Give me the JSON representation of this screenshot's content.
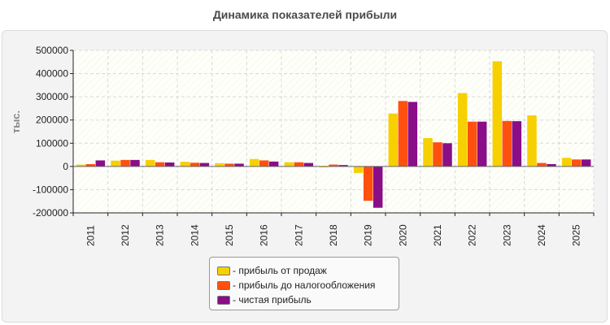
{
  "chart_data": {
    "type": "bar",
    "title": "Динамика показателей прибыли",
    "ylabel": "тыс.",
    "categories": [
      "2011",
      "2012",
      "2013",
      "2014",
      "2015",
      "2016",
      "2017",
      "2018",
      "2019",
      "2020",
      "2021",
      "2022",
      "2023",
      "2024",
      "2025"
    ],
    "series": [
      {
        "name": "- прибыль от продаж",
        "color": "#f6d000",
        "values": [
          8000,
          25000,
          28000,
          20000,
          14000,
          32000,
          18000,
          -4000,
          -28000,
          228000,
          122000,
          316000,
          453000,
          220000,
          37000
        ]
      },
      {
        "name": "- прибыль до налогообложения",
        "color": "#ff5010",
        "values": [
          10000,
          28000,
          18000,
          16000,
          12000,
          26000,
          18000,
          8000,
          -148000,
          282000,
          104000,
          193000,
          196000,
          15000,
          30000
        ]
      },
      {
        "name": "- чистая прибыль",
        "color": "#8a0e88",
        "values": [
          26000,
          28000,
          17000,
          15000,
          12000,
          21000,
          15000,
          6000,
          -178000,
          278000,
          100000,
          193000,
          195000,
          10000,
          30000
        ]
      }
    ],
    "ylim": [
      -200000,
      500000
    ],
    "yticks": [
      -200000,
      -100000,
      0,
      100000,
      200000,
      300000,
      400000,
      500000
    ],
    "ytick_labels": [
      "-200000",
      "-100000",
      "0",
      "100000",
      "200000",
      "300000",
      "400000",
      "500000"
    ],
    "grid": true,
    "legend_position": "bottom"
  }
}
